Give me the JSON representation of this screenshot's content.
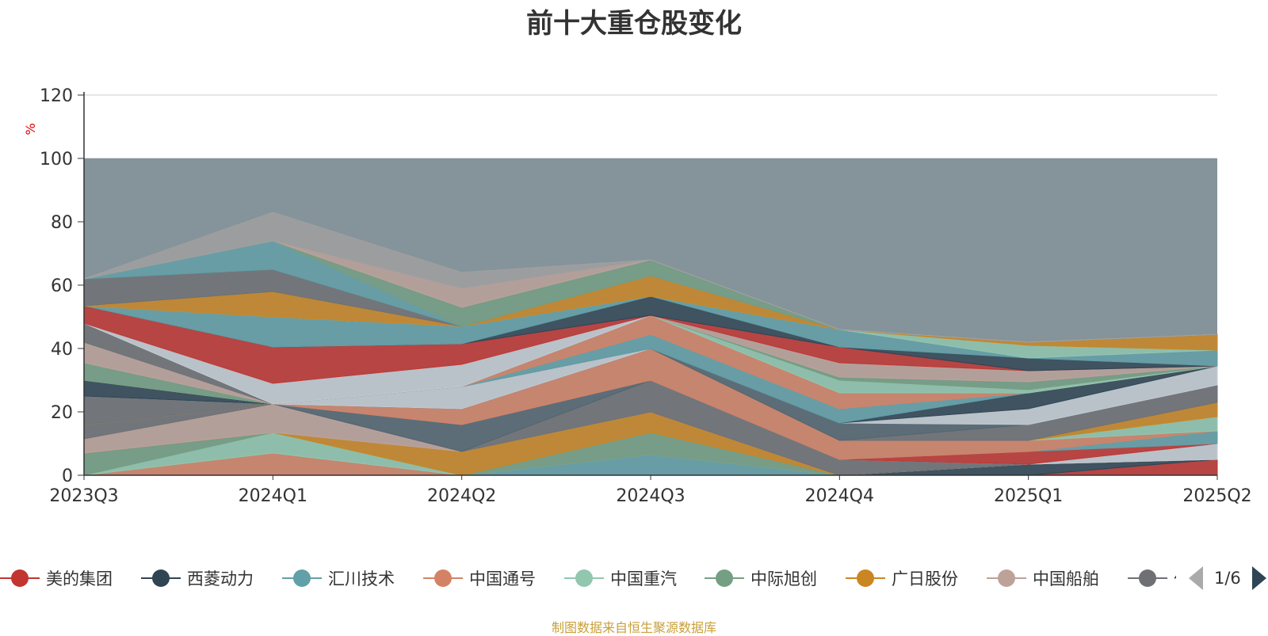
{
  "colors": {
    "background_area": "#85939a",
    "grid": "#cccccc",
    "axis": "#333333",
    "unit": "#e00000",
    "title": "#333333",
    "footnote": "#c8a03a"
  },
  "legend": {
    "items": [
      {
        "name": "美的集团",
        "color": "#c23531"
      },
      {
        "name": "西菱动力",
        "color": "#2f4554"
      },
      {
        "name": "汇川技术",
        "color": "#61a0a8"
      },
      {
        "name": "中国通号",
        "color": "#d48265"
      },
      {
        "name": "中国重汽",
        "color": "#91c7ae"
      },
      {
        "name": "中际旭创",
        "color": "#749f83"
      },
      {
        "name": "广日股份",
        "color": "#ca8622"
      },
      {
        "name": "中国船舶",
        "color": "#bda29a"
      },
      {
        "name": "伯",
        "color": "#6e7074"
      }
    ],
    "page": "1/6"
  },
  "footnote": "制图数据来自恒生聚源数据库",
  "chart_data": {
    "type": "area",
    "stacked": true,
    "title": "前十大重仓股变化",
    "ylabel": "%",
    "xlabel": "",
    "categories": [
      "2023Q3",
      "2024Q1",
      "2024Q2",
      "2024Q3",
      "2024Q4",
      "2025Q1",
      "2025Q2"
    ],
    "ylim": [
      0,
      120
    ],
    "yticks": [
      0,
      20,
      40,
      60,
      80,
      100,
      120
    ],
    "grid": true,
    "legend_position": "bottom",
    "background_series": {
      "value": 100,
      "color": "#85939a"
    },
    "series": [
      {
        "color": "#c23531",
        "values": [
          0,
          0,
          0,
          0,
          0,
          0,
          5
        ]
      },
      {
        "color": "#2f4554",
        "values": [
          0,
          0,
          0,
          0,
          0,
          3.5,
          0
        ]
      },
      {
        "color": "#61a0a8",
        "values": [
          0,
          0,
          0,
          6.5,
          0,
          0,
          0
        ]
      },
      {
        "color": "#d48265",
        "values": [
          0,
          7,
          0,
          0,
          0,
          0,
          0
        ]
      },
      {
        "color": "#91c7ae",
        "values": [
          0,
          6.5,
          0,
          0,
          0,
          0,
          0
        ]
      },
      {
        "color": "#749f83",
        "values": [
          7,
          0,
          0,
          7,
          0,
          0,
          0
        ]
      },
      {
        "color": "#ca8622",
        "values": [
          0,
          0,
          7.5,
          6.5,
          0,
          0,
          0
        ]
      },
      {
        "color": "#bda29a",
        "values": [
          4.5,
          9,
          0,
          0,
          0,
          0,
          0
        ]
      },
      {
        "color": "#6e7074",
        "values": [
          4.5,
          0,
          0,
          10,
          5,
          0,
          0
        ]
      },
      {
        "color": "#546570",
        "values": [
          0,
          0,
          8.5,
          0,
          0,
          0,
          0
        ]
      },
      {
        "color": "#c4ccd3",
        "values": [
          0,
          0,
          0,
          0,
          0,
          0,
          5
        ]
      },
      {
        "color": "#c23531",
        "values": [
          0,
          0,
          0,
          0,
          0,
          4,
          0
        ]
      },
      {
        "color": "#2f4554",
        "values": [
          0,
          0,
          0,
          0,
          0,
          0,
          0
        ]
      },
      {
        "color": "#61a0a8",
        "values": [
          0,
          0,
          0,
          0,
          0,
          0,
          4
        ]
      },
      {
        "color": "#d48265",
        "values": [
          0,
          0,
          5,
          10,
          6,
          3.5,
          0
        ]
      },
      {
        "color": "#91c7ae",
        "values": [
          0,
          0,
          0,
          0,
          0,
          0,
          4.5
        ]
      },
      {
        "color": "#749f83",
        "values": [
          0,
          0,
          0,
          0,
          0,
          0,
          0
        ]
      },
      {
        "color": "#ca8622",
        "values": [
          0,
          0,
          0,
          0,
          0,
          0,
          4.5
        ]
      },
      {
        "color": "#bda29a",
        "values": [
          0,
          0,
          0,
          0,
          0,
          0,
          0
        ]
      },
      {
        "color": "#6e7074",
        "values": [
          9,
          0,
          0,
          0,
          0,
          5,
          5.5
        ]
      },
      {
        "color": "#546570",
        "values": [
          0,
          0,
          0,
          0,
          5.5,
          0,
          0
        ]
      },
      {
        "color": "#c4ccd3",
        "values": [
          0,
          0,
          7,
          0,
          0,
          5,
          6
        ]
      },
      {
        "color": "#c23531",
        "values": [
          0,
          0,
          0,
          0,
          0,
          0,
          0
        ]
      },
      {
        "color": "#2f4554",
        "values": [
          5,
          0,
          0,
          0,
          0,
          5,
          0
        ]
      },
      {
        "color": "#61a0a8",
        "values": [
          0,
          0,
          0,
          4.5,
          4.5,
          0,
          0
        ]
      },
      {
        "color": "#d48265",
        "values": [
          0,
          0,
          0,
          6,
          5,
          0,
          0
        ]
      },
      {
        "color": "#91c7ae",
        "values": [
          0,
          0,
          0,
          0,
          4,
          1,
          0
        ]
      },
      {
        "color": "#749f83",
        "values": [
          5.5,
          0,
          0,
          0,
          1,
          2.5,
          0
        ]
      },
      {
        "color": "#ca8622",
        "values": [
          0,
          0,
          0,
          0,
          0,
          0,
          0
        ]
      },
      {
        "color": "#bda29a",
        "values": [
          6.5,
          0,
          0,
          0,
          4.5,
          3.5,
          0
        ]
      },
      {
        "color": "#6e7074",
        "values": [
          6,
          0,
          0,
          0,
          0,
          0,
          0
        ]
      },
      {
        "color": "#546570",
        "values": [
          0,
          0,
          0,
          0,
          0,
          0,
          0
        ]
      },
      {
        "color": "#c4ccd3",
        "values": [
          0,
          6.5,
          7,
          0,
          0,
          0,
          0
        ]
      },
      {
        "color": "#c23531",
        "values": [
          5.5,
          11.5,
          6.5,
          0,
          5,
          0,
          0
        ]
      },
      {
        "color": "#2f4554",
        "values": [
          0,
          0,
          0,
          6,
          0,
          4,
          0
        ]
      },
      {
        "color": "#61a0a8",
        "values": [
          0,
          9.5,
          5.5,
          0,
          5.5,
          0,
          5
        ]
      },
      {
        "color": "#d48265",
        "values": [
          0,
          0,
          0,
          0,
          0,
          0,
          0
        ]
      },
      {
        "color": "#91c7ae",
        "values": [
          0,
          0,
          0,
          0,
          0,
          4,
          0
        ]
      },
      {
        "color": "#749f83",
        "values": [
          0,
          0,
          0,
          0,
          0,
          0,
          0
        ]
      },
      {
        "color": "#ca8622",
        "values": [
          0,
          8,
          0,
          6.5,
          0,
          1,
          5
        ]
      },
      {
        "color": "#bda29a",
        "values": [
          0,
          0,
          0,
          0,
          0,
          0,
          0
        ]
      },
      {
        "color": "#6e7074",
        "values": [
          8.5,
          7,
          0,
          0,
          0,
          0,
          0
        ]
      },
      {
        "color": "#546570",
        "values": [
          0,
          0,
          0,
          0,
          0,
          0,
          0
        ]
      },
      {
        "color": "#61a0a8",
        "values": [
          0,
          9,
          0,
          0,
          0,
          0,
          0
        ]
      },
      {
        "color": "#749f83",
        "values": [
          0,
          0,
          6,
          5,
          0,
          0,
          0
        ]
      },
      {
        "color": "#bda29a",
        "values": [
          0,
          0,
          6,
          0,
          0,
          0,
          0
        ]
      },
      {
        "color": "#a0a0a0",
        "values": [
          0,
          9,
          5,
          0,
          0,
          0,
          0
        ]
      }
    ]
  }
}
